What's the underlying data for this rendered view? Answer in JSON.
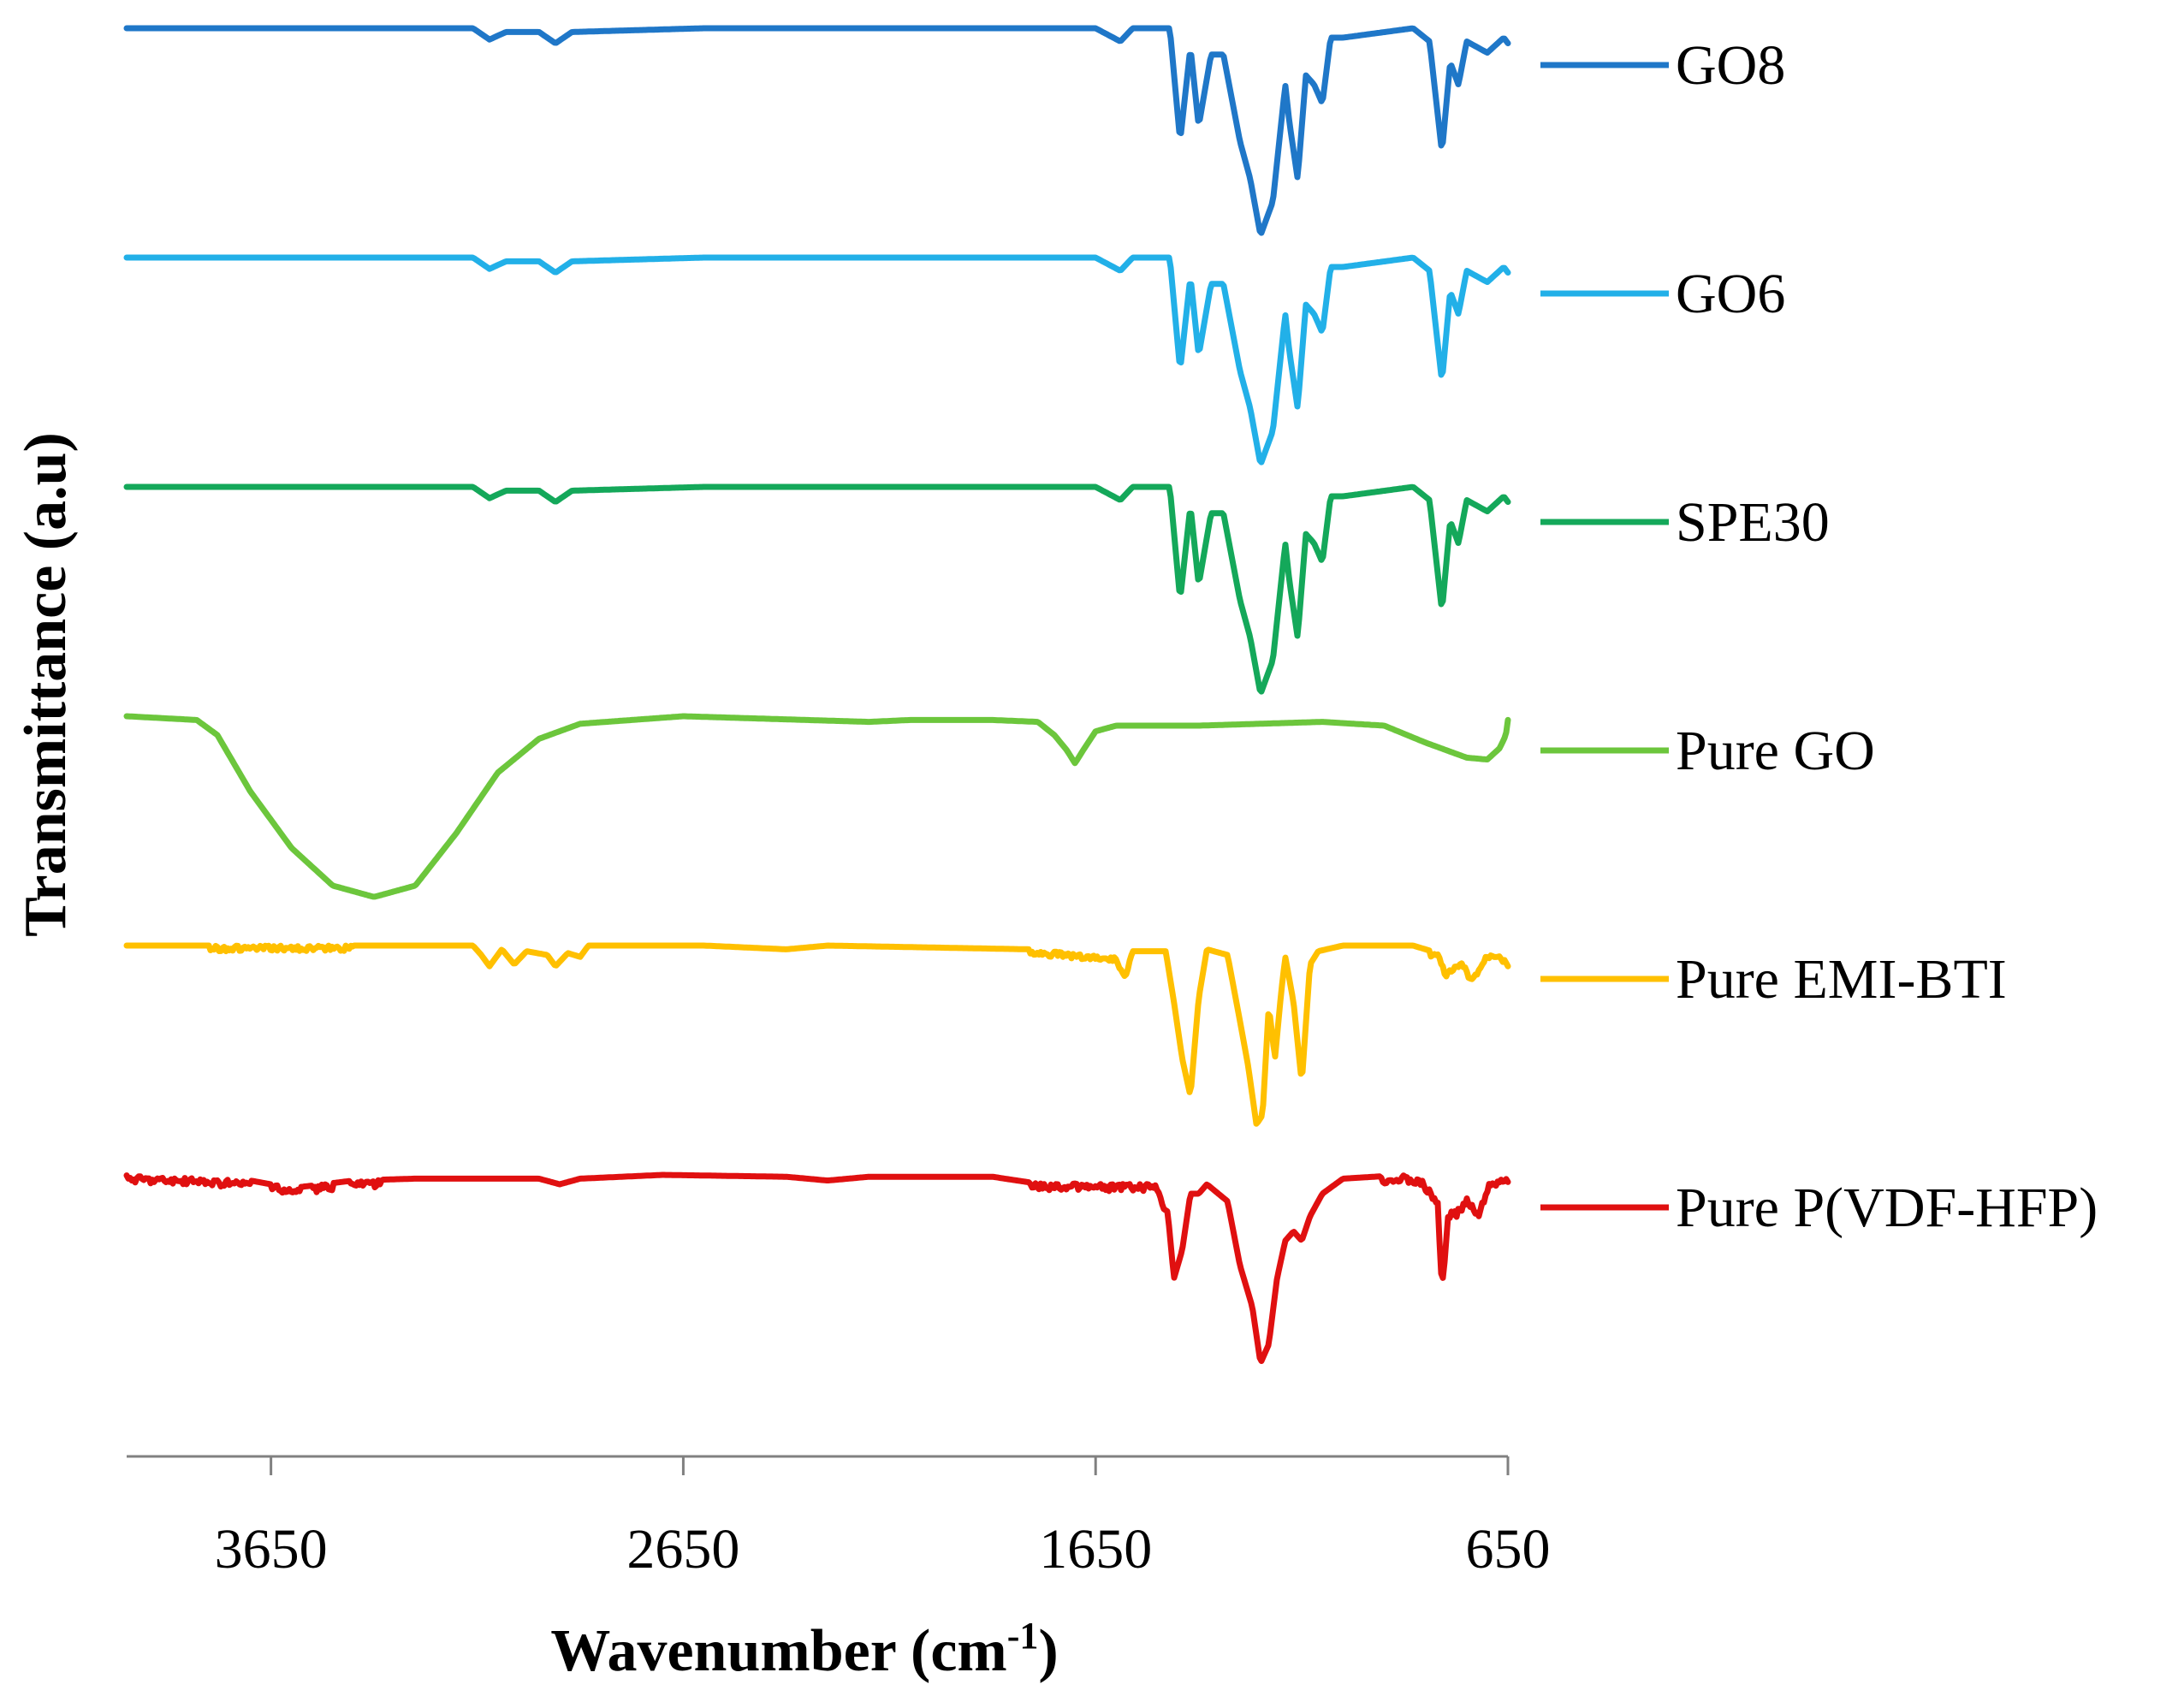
{
  "chart_data": {
    "type": "line",
    "title": "",
    "xlabel_main": "Wavenumber (cm",
    "xlabel_sup": "-1",
    "xlabel_end": ")",
    "ylabel": "Transmittance (a.u)",
    "xlim": [
      4000,
      650
    ],
    "x_ticks": [
      3650,
      2650,
      1650,
      650
    ],
    "x_tick_labels": [
      "3650",
      "2650",
      "1650",
      "650"
    ],
    "grid": false,
    "legend_position": "right",
    "series": [
      {
        "name": "GO8",
        "color": "#1f77c8",
        "offset": 5,
        "noise": 0.0,
        "points": [
          [
            4000,
            0
          ],
          [
            3160,
            0
          ],
          [
            3120,
            -0.06
          ],
          [
            3080,
            -0.02
          ],
          [
            3000,
            -0.02
          ],
          [
            2960,
            -0.08
          ],
          [
            2920,
            -0.02
          ],
          [
            2600,
            0
          ],
          [
            1650,
            0
          ],
          [
            1590,
            -0.07
          ],
          [
            1560,
            0
          ],
          [
            1470,
            0
          ],
          [
            1445,
            -0.6
          ],
          [
            1420,
            -0.1
          ],
          [
            1400,
            -0.52
          ],
          [
            1370,
            -0.14
          ],
          [
            1340,
            -0.14
          ],
          [
            1300,
            -0.6
          ],
          [
            1275,
            -0.8
          ],
          [
            1250,
            -1.1
          ],
          [
            1220,
            -0.92
          ],
          [
            1190,
            -0.3
          ],
          [
            1180,
            -0.5
          ],
          [
            1160,
            -0.8
          ],
          [
            1140,
            -0.25
          ],
          [
            1120,
            -0.3
          ],
          [
            1100,
            -0.4
          ],
          [
            1080,
            -0.05
          ],
          [
            1050,
            -0.05
          ],
          [
            880,
            0
          ],
          [
            840,
            -0.07
          ],
          [
            810,
            -0.66
          ],
          [
            790,
            -0.18
          ],
          [
            770,
            -0.3
          ],
          [
            750,
            -0.07
          ],
          [
            700,
            -0.13
          ],
          [
            660,
            -0.05
          ],
          [
            650,
            -0.08
          ]
        ]
      },
      {
        "name": "GO6",
        "color": "#22b0e8",
        "offset": 4,
        "noise": 0.0,
        "points": [
          [
            4000,
            0
          ],
          [
            3160,
            0
          ],
          [
            3120,
            -0.06
          ],
          [
            3080,
            -0.02
          ],
          [
            3000,
            -0.02
          ],
          [
            2960,
            -0.08
          ],
          [
            2920,
            -0.02
          ],
          [
            2600,
            0
          ],
          [
            1650,
            0
          ],
          [
            1590,
            -0.07
          ],
          [
            1560,
            0
          ],
          [
            1470,
            0
          ],
          [
            1445,
            -0.6
          ],
          [
            1420,
            -0.1
          ],
          [
            1400,
            -0.52
          ],
          [
            1370,
            -0.14
          ],
          [
            1340,
            -0.14
          ],
          [
            1300,
            -0.6
          ],
          [
            1275,
            -0.8
          ],
          [
            1250,
            -1.1
          ],
          [
            1220,
            -0.92
          ],
          [
            1190,
            -0.3
          ],
          [
            1180,
            -0.5
          ],
          [
            1160,
            -0.8
          ],
          [
            1140,
            -0.25
          ],
          [
            1120,
            -0.3
          ],
          [
            1100,
            -0.4
          ],
          [
            1080,
            -0.05
          ],
          [
            1050,
            -0.05
          ],
          [
            880,
            0
          ],
          [
            840,
            -0.07
          ],
          [
            810,
            -0.66
          ],
          [
            790,
            -0.18
          ],
          [
            770,
            -0.3
          ],
          [
            750,
            -0.07
          ],
          [
            700,
            -0.13
          ],
          [
            660,
            -0.05
          ],
          [
            650,
            -0.08
          ]
        ]
      },
      {
        "name": "SPE30",
        "color": "#14a85a",
        "offset": 3,
        "noise": 0.0,
        "points": [
          [
            4000,
            0
          ],
          [
            3160,
            0
          ],
          [
            3120,
            -0.06
          ],
          [
            3080,
            -0.02
          ],
          [
            3000,
            -0.02
          ],
          [
            2960,
            -0.08
          ],
          [
            2920,
            -0.02
          ],
          [
            2600,
            0
          ],
          [
            1650,
            0
          ],
          [
            1590,
            -0.07
          ],
          [
            1560,
            0
          ],
          [
            1470,
            0
          ],
          [
            1445,
            -0.6
          ],
          [
            1420,
            -0.1
          ],
          [
            1400,
            -0.52
          ],
          [
            1370,
            -0.14
          ],
          [
            1340,
            -0.14
          ],
          [
            1300,
            -0.6
          ],
          [
            1275,
            -0.8
          ],
          [
            1250,
            -1.1
          ],
          [
            1220,
            -0.92
          ],
          [
            1190,
            -0.3
          ],
          [
            1180,
            -0.5
          ],
          [
            1160,
            -0.8
          ],
          [
            1140,
            -0.25
          ],
          [
            1120,
            -0.3
          ],
          [
            1100,
            -0.4
          ],
          [
            1080,
            -0.05
          ],
          [
            1050,
            -0.05
          ],
          [
            880,
            0
          ],
          [
            840,
            -0.07
          ],
          [
            810,
            -0.66
          ],
          [
            790,
            -0.18
          ],
          [
            770,
            -0.3
          ],
          [
            750,
            -0.07
          ],
          [
            700,
            -0.13
          ],
          [
            660,
            -0.05
          ],
          [
            650,
            -0.08
          ]
        ]
      },
      {
        "name": "Pure GO",
        "color": "#6cc63c",
        "offset": 2,
        "noise": 0.0,
        "points": [
          [
            4000,
            0
          ],
          [
            3830,
            -0.02
          ],
          [
            3780,
            -0.1
          ],
          [
            3700,
            -0.4
          ],
          [
            3600,
            -0.7
          ],
          [
            3500,
            -0.9
          ],
          [
            3400,
            -0.96
          ],
          [
            3300,
            -0.9
          ],
          [
            3200,
            -0.62
          ],
          [
            3100,
            -0.3
          ],
          [
            3000,
            -0.12
          ],
          [
            2900,
            -0.04
          ],
          [
            2650,
            0
          ],
          [
            2350,
            -0.02
          ],
          [
            2200,
            -0.03
          ],
          [
            2100,
            -0.02
          ],
          [
            1900,
            -0.02
          ],
          [
            1790,
            -0.03
          ],
          [
            1750,
            -0.1
          ],
          [
            1720,
            -0.18
          ],
          [
            1700,
            -0.25
          ],
          [
            1680,
            -0.18
          ],
          [
            1650,
            -0.08
          ],
          [
            1600,
            -0.05
          ],
          [
            1400,
            -0.05
          ],
          [
            1100,
            -0.03
          ],
          [
            950,
            -0.05
          ],
          [
            850,
            -0.14
          ],
          [
            750,
            -0.22
          ],
          [
            700,
            -0.23
          ],
          [
            670,
            -0.17
          ],
          [
            655,
            -0.1
          ],
          [
            650,
            -0.02
          ]
        ]
      },
      {
        "name": "Pure EMI-BTI",
        "color": "#ffc000",
        "offset": 1,
        "noise": 0.03,
        "noise_ranges": [
          [
            3800,
            3450
          ],
          [
            1810,
            1560
          ],
          [
            840,
            660
          ]
        ],
        "points": [
          [
            4000,
            0
          ],
          [
            3160,
            0
          ],
          [
            3140,
            -0.05
          ],
          [
            3120,
            -0.11
          ],
          [
            3090,
            -0.02
          ],
          [
            3060,
            -0.1
          ],
          [
            3030,
            -0.03
          ],
          [
            2980,
            -0.05
          ],
          [
            2960,
            -0.11
          ],
          [
            2930,
            -0.04
          ],
          [
            2900,
            -0.06
          ],
          [
            2880,
            0
          ],
          [
            2600,
            0
          ],
          [
            2400,
            -0.02
          ],
          [
            2300,
            0
          ],
          [
            1810,
            -0.02
          ],
          [
            1600,
            -0.06
          ],
          [
            1580,
            -0.15
          ],
          [
            1560,
            -0.03
          ],
          [
            1480,
            -0.03
          ],
          [
            1460,
            -0.3
          ],
          [
            1440,
            -0.6
          ],
          [
            1420,
            -0.8
          ],
          [
            1400,
            -0.28
          ],
          [
            1380,
            -0.02
          ],
          [
            1330,
            -0.05
          ],
          [
            1300,
            -0.4
          ],
          [
            1280,
            -0.64
          ],
          [
            1260,
            -0.95
          ],
          [
            1245,
            -0.9
          ],
          [
            1230,
            -0.32
          ],
          [
            1215,
            -0.6
          ],
          [
            1200,
            -0.25
          ],
          [
            1190,
            -0.06
          ],
          [
            1170,
            -0.3
          ],
          [
            1150,
            -0.73
          ],
          [
            1130,
            -0.1
          ],
          [
            1110,
            -0.03
          ],
          [
            1050,
            0
          ],
          [
            880,
            0
          ],
          [
            820,
            -0.04
          ],
          [
            800,
            -0.14
          ],
          [
            760,
            -0.08
          ],
          [
            740,
            -0.18
          ],
          [
            700,
            -0.04
          ],
          [
            670,
            -0.03
          ],
          [
            650,
            -0.11
          ]
        ]
      },
      {
        "name": "Pure P(VDF-HFP)",
        "color": "#e01010",
        "offset": 0,
        "noise": 0.04,
        "noise_ranges": [
          [
            4000,
            3700
          ],
          [
            3650,
            3580
          ],
          [
            3550,
            3500
          ],
          [
            3460,
            3380
          ],
          [
            1810,
            1480
          ],
          [
            960,
            650
          ]
        ],
        "points": [
          [
            4000,
            0
          ],
          [
            3700,
            -0.03
          ],
          [
            3600,
            -0.07
          ],
          [
            3450,
            -0.03
          ],
          [
            3300,
            -0.02
          ],
          [
            3000,
            -0.02
          ],
          [
            2950,
            -0.05
          ],
          [
            2900,
            -0.02
          ],
          [
            2700,
            0
          ],
          [
            2400,
            -0.01
          ],
          [
            2300,
            -0.03
          ],
          [
            2200,
            -0.01
          ],
          [
            1900,
            -0.01
          ],
          [
            1810,
            -0.04
          ],
          [
            1500,
            -0.05
          ],
          [
            1475,
            -0.2
          ],
          [
            1460,
            -0.55
          ],
          [
            1440,
            -0.4
          ],
          [
            1420,
            -0.1
          ],
          [
            1400,
            -0.1
          ],
          [
            1380,
            -0.05
          ],
          [
            1330,
            -0.14
          ],
          [
            1300,
            -0.48
          ],
          [
            1270,
            -0.7
          ],
          [
            1250,
            -1.0
          ],
          [
            1230,
            -0.9
          ],
          [
            1210,
            -0.55
          ],
          [
            1190,
            -0.35
          ],
          [
            1170,
            -0.3
          ],
          [
            1150,
            -0.35
          ],
          [
            1130,
            -0.22
          ],
          [
            1100,
            -0.1
          ],
          [
            1050,
            -0.02
          ],
          [
            900,
            0
          ],
          [
            860,
            -0.02
          ],
          [
            820,
            -0.13
          ],
          [
            810,
            -0.6
          ],
          [
            795,
            -0.2
          ],
          [
            770,
            -0.18
          ],
          [
            750,
            -0.12
          ],
          [
            720,
            -0.2
          ],
          [
            700,
            -0.05
          ],
          [
            660,
            0
          ],
          [
            650,
            0
          ]
        ]
      }
    ]
  }
}
